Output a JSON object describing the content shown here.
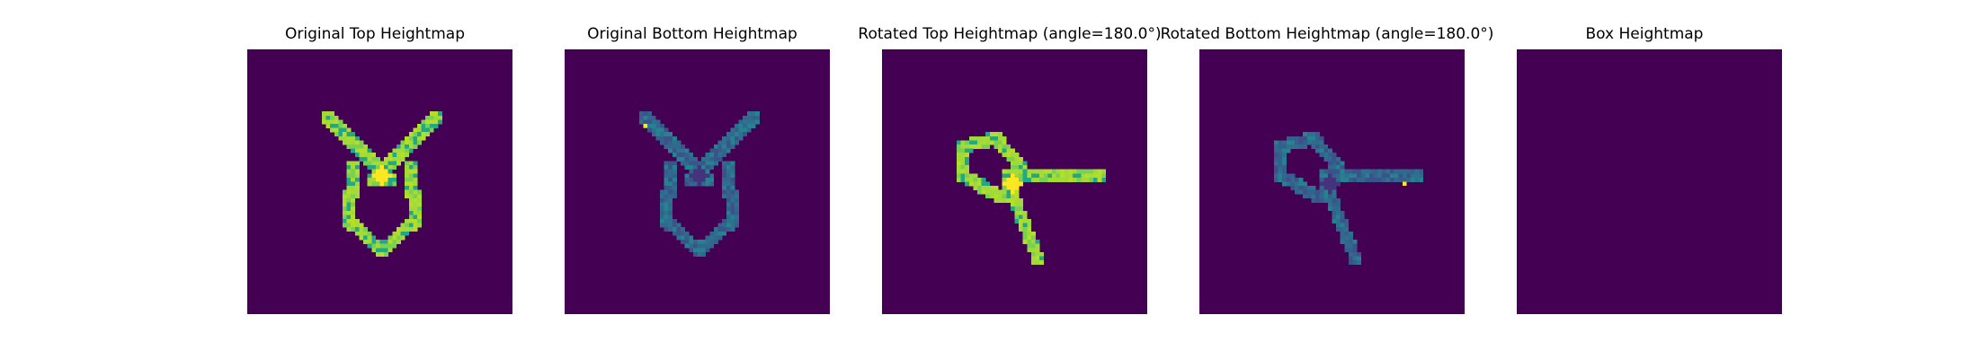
{
  "figure": {
    "background": "#ffffff"
  },
  "chart_data": [
    {
      "type": "heatmap",
      "title": "Original Top Heightmap",
      "colormap": "viridis",
      "grid": false,
      "axes_visible": false,
      "background_value_color": "#440154",
      "shape": "V-shaped clip outline, symmetric, open at top",
      "dominant_colors": [
        "#a5db36",
        "#7ad151",
        "#fde725",
        "#22a884"
      ]
    },
    {
      "type": "heatmap",
      "title": "Original Bottom Heightmap",
      "colormap": "viridis",
      "grid": false,
      "axes_visible": false,
      "background_value_color": "#440154",
      "shape": "V-shaped clip outline, symmetric, open at top",
      "dominant_colors": [
        "#3b528b",
        "#31688e",
        "#26828e",
        "#fde725"
      ]
    },
    {
      "type": "heatmap",
      "title": "Rotated Top Heightmap (angle=180.0°)",
      "colormap": "viridis",
      "grid": false,
      "axes_visible": false,
      "background_value_color": "#440154",
      "shape": "clip outline rotated; loop at upper-left, one arm to the right, one arm down",
      "dominant_colors": [
        "#a5db36",
        "#7ad151",
        "#fde725",
        "#22a884"
      ]
    },
    {
      "type": "heatmap",
      "title": "Rotated Bottom Heightmap (angle=180.0°)",
      "colormap": "viridis",
      "grid": false,
      "axes_visible": false,
      "background_value_color": "#440154",
      "shape": "clip outline rotated; loop at upper-left, one arm to the right, one arm down",
      "dominant_colors": [
        "#3b528b",
        "#31688e",
        "#26828e",
        "#fde725"
      ]
    },
    {
      "type": "heatmap",
      "title": "Box Heightmap",
      "colormap": "viridis",
      "grid": false,
      "axes_visible": false,
      "background_value_color": "#440154",
      "shape": "uniform (all zero)",
      "dominant_colors": [
        "#440154"
      ]
    }
  ]
}
